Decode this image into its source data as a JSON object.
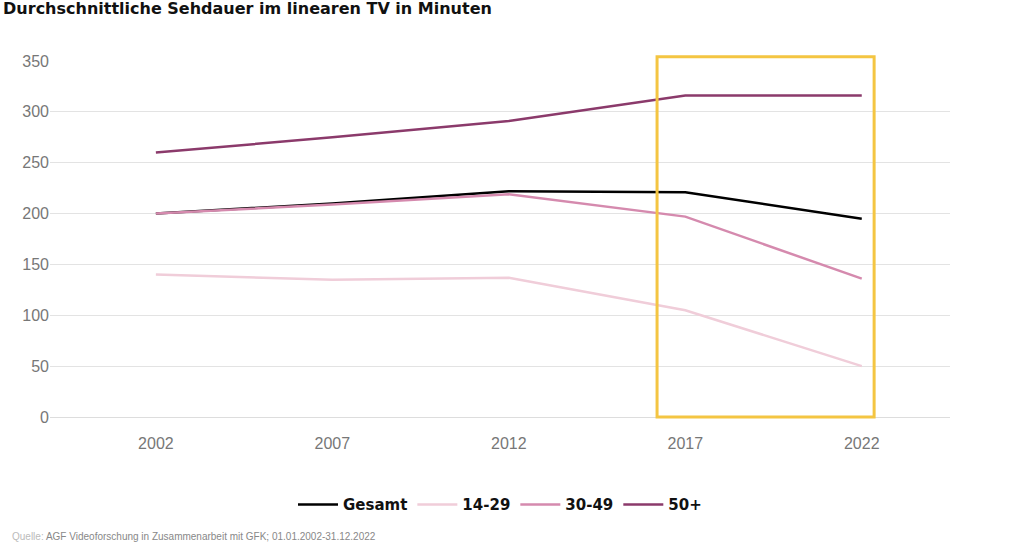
{
  "chart_data": {
    "type": "line",
    "title": "Durchschnittliche Sehdauer im linearen TV in Minuten",
    "x": [
      2002,
      2007,
      2012,
      2017,
      2022
    ],
    "series": [
      {
        "name": "Gesamt",
        "color": "#000000",
        "values": [
          200,
          210,
          222,
          221,
          195
        ]
      },
      {
        "name": "14-29",
        "color": "#f0cdd9",
        "values": [
          140,
          135,
          137,
          105,
          50
        ]
      },
      {
        "name": "30-49",
        "color": "#d58aae",
        "values": [
          200,
          209,
          219,
          197,
          136
        ]
      },
      {
        "name": "50+",
        "color": "#8b3a6b",
        "values": [
          260,
          275,
          291,
          316,
          316
        ]
      }
    ],
    "xlim": [
      1999,
      2024.5
    ],
    "xticks": [
      2002,
      2007,
      2012,
      2017,
      2022
    ],
    "ylim": [
      0,
      350
    ],
    "yticks": [
      0,
      50,
      100,
      150,
      200,
      250,
      300,
      350
    ],
    "grid": true,
    "legend": "bottom",
    "source_label": "Quelle:",
    "source": "AGF Videoforschung in Zusammenarbeit mit GFK; 01.01.2002-31.12.2022"
  }
}
